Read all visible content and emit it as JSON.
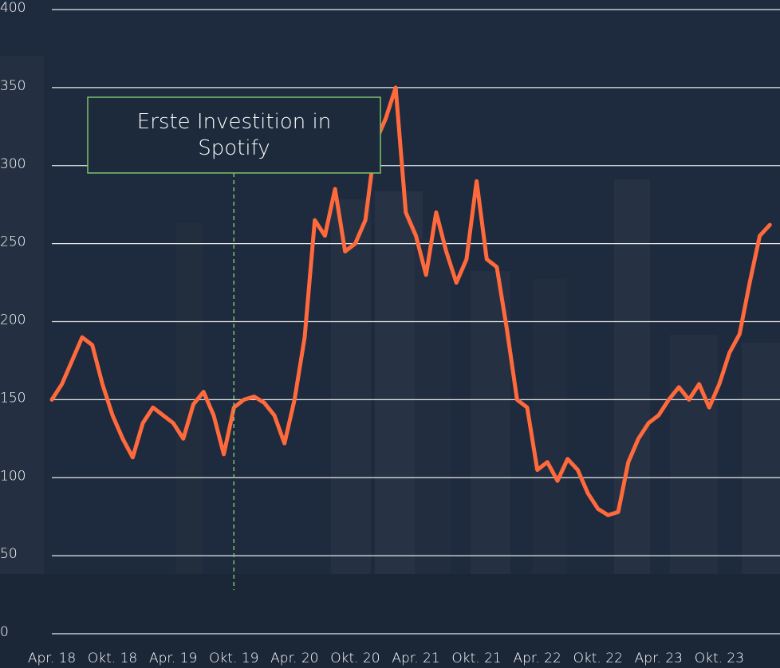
{
  "chart_data": {
    "type": "line",
    "x": [
      "2018-04",
      "2018-05",
      "2018-06",
      "2018-07",
      "2018-08",
      "2018-09",
      "2018-10",
      "2018-11",
      "2018-12",
      "2019-01",
      "2019-02",
      "2019-03",
      "2019-04",
      "2019-05",
      "2019-06",
      "2019-07",
      "2019-08",
      "2019-09",
      "2019-10",
      "2019-11",
      "2019-12",
      "2020-01",
      "2020-02",
      "2020-03",
      "2020-04",
      "2020-05",
      "2020-06",
      "2020-07",
      "2020-08",
      "2020-09",
      "2020-10",
      "2020-11",
      "2020-12",
      "2021-01",
      "2021-02",
      "2021-03",
      "2021-04",
      "2021-05",
      "2021-06",
      "2021-07",
      "2021-08",
      "2021-09",
      "2021-10",
      "2021-11",
      "2021-12",
      "2022-01",
      "2022-02",
      "2022-03",
      "2022-04",
      "2022-05",
      "2022-06",
      "2022-07",
      "2022-08",
      "2022-09",
      "2022-10",
      "2022-11",
      "2022-12",
      "2023-01",
      "2023-02",
      "2023-03",
      "2023-04",
      "2023-05",
      "2023-06",
      "2023-07",
      "2023-08",
      "2023-09",
      "2023-10",
      "2023-11",
      "2023-12",
      "2024-01",
      "2024-02",
      "2024-03"
    ],
    "values": [
      150,
      160,
      175,
      190,
      185,
      160,
      140,
      125,
      113,
      135,
      145,
      140,
      135,
      125,
      147,
      155,
      140,
      115,
      145,
      150,
      152,
      148,
      140,
      122,
      150,
      190,
      265,
      255,
      285,
      245,
      250,
      265,
      315,
      330,
      350,
      270,
      255,
      230,
      270,
      245,
      225,
      240,
      290,
      240,
      235,
      195,
      150,
      145,
      105,
      110,
      98,
      112,
      105,
      90,
      80,
      76,
      78,
      110,
      125,
      135,
      140,
      150,
      158,
      150,
      160,
      145,
      160,
      180,
      192,
      225,
      255,
      262
    ],
    "color": "#ff6a3d",
    "xlim": [
      "2018-04",
      "2024-04"
    ],
    "xticks": [
      {
        "value": "2018-04",
        "label": "Apr. 18"
      },
      {
        "value": "2018-10",
        "label": "Okt. 18"
      },
      {
        "value": "2019-04",
        "label": "Apr. 19"
      },
      {
        "value": "2019-10",
        "label": "Okt. 19"
      },
      {
        "value": "2020-04",
        "label": "Apr. 20"
      },
      {
        "value": "2020-10",
        "label": "Okt. 20"
      },
      {
        "value": "2021-04",
        "label": "Apr. 21"
      },
      {
        "value": "2021-10",
        "label": "Okt. 21"
      },
      {
        "value": "2022-04",
        "label": "Apr. 22"
      },
      {
        "value": "2022-10",
        "label": "Okt. 22"
      },
      {
        "value": "2023-04",
        "label": "Apr. 23"
      },
      {
        "value": "2023-10",
        "label": "Okt. 23"
      }
    ],
    "ylim": [
      0,
      400
    ],
    "yticks": [
      0,
      50,
      100,
      150,
      200,
      250,
      300,
      350,
      400
    ],
    "grid": true,
    "annotation": {
      "text": "Erste Investition in Spotify",
      "x": "2019-10",
      "color": "#7cc36a"
    }
  }
}
